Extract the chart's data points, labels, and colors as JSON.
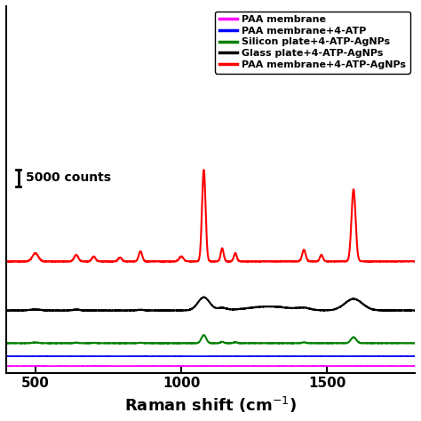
{
  "xlabel_display": "Raman shift (cm$^{-1}$)",
  "xlim": [
    400,
    1800
  ],
  "xticks": [
    500,
    1000,
    1500
  ],
  "ylim": [
    -2000,
    110000
  ],
  "legend_entries": [
    {
      "label": "PAA membrane",
      "color": "#ff00ff"
    },
    {
      "label": "PAA membrane+4-ATP",
      "color": "#0000ff"
    },
    {
      "label": "Silicon plate+4-ATP-AgNPs",
      "color": "#008000"
    },
    {
      "label": "Glass plate+4-ATP-AgNPs",
      "color": "#000000"
    },
    {
      "label": "PAA membrane+4-ATP-AgNPs",
      "color": "#ff0000"
    }
  ],
  "scalebar_label": "5000 counts",
  "scalebar_counts": 5000,
  "base_offsets": [
    0,
    3000,
    7000,
    17000,
    32000
  ],
  "peak_scale": 1.0
}
